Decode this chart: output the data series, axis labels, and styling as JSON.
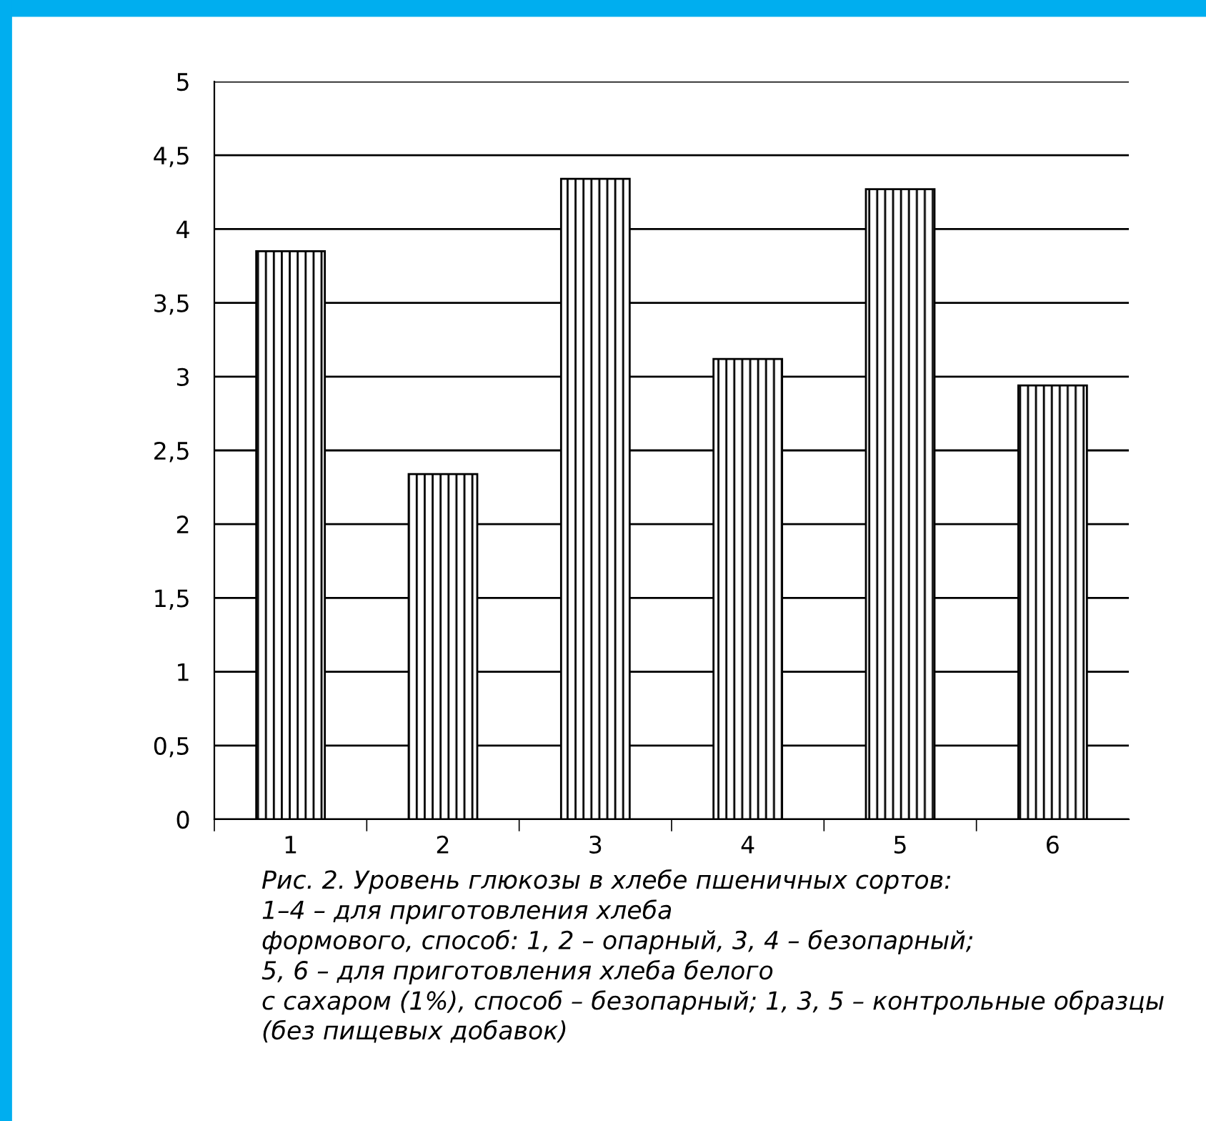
{
  "chart_data": {
    "type": "bar",
    "categories": [
      "1",
      "2",
      "3",
      "4",
      "5",
      "6"
    ],
    "values": [
      3.85,
      2.34,
      4.34,
      3.12,
      4.27,
      2.94
    ],
    "color": "#000000",
    "ylim": [
      0,
      5
    ],
    "yticks": [
      0,
      {
        "value": 0.5,
        "label": "0,5"
      },
      1,
      {
        "value": 1.5,
        "label": "1,5"
      },
      2,
      {
        "value": 2.5,
        "label": "2,5"
      },
      3,
      {
        "value": 3.5,
        "label": "3,5"
      },
      4,
      {
        "value": 4.5,
        "label": "4,5"
      },
      5
    ],
    "grid": "y",
    "legend": false,
    "annotations": [
      "Рис. 2. Уровень глюкозы в хлебе пшеничных сортов:\n1–4 – для приготовления хлеба\nформового, способ: 1, 2 – опарный, 3, 4 – безопарный;\n5, 6 – для приготовления хлеба белого\nс сахаром (1%), способ – безопарный; 1, 3, 5 – контрольные образцы\n(без пищевых добавок)"
    ]
  }
}
